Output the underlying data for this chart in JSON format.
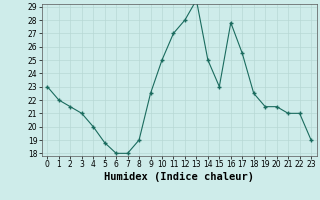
{
  "x": [
    0,
    1,
    2,
    3,
    4,
    5,
    6,
    7,
    8,
    9,
    10,
    11,
    12,
    13,
    14,
    15,
    16,
    17,
    18,
    19,
    20,
    21,
    22,
    23
  ],
  "y": [
    23.0,
    22.0,
    21.5,
    21.0,
    20.0,
    18.8,
    18.0,
    18.0,
    19.0,
    22.5,
    25.0,
    27.0,
    28.0,
    29.5,
    25.0,
    23.0,
    27.8,
    25.5,
    22.5,
    21.5,
    21.5,
    21.0,
    21.0,
    19.0
  ],
  "xlabel": "Humidex (Indice chaleur)",
  "ylim_min": 18,
  "ylim_max": 29,
  "xlim_min": 0,
  "xlim_max": 23,
  "yticks": [
    18,
    19,
    20,
    21,
    22,
    23,
    24,
    25,
    26,
    27,
    28,
    29
  ],
  "xticks": [
    0,
    1,
    2,
    3,
    4,
    5,
    6,
    7,
    8,
    9,
    10,
    11,
    12,
    13,
    14,
    15,
    16,
    17,
    18,
    19,
    20,
    21,
    22,
    23
  ],
  "line_color": "#1a6b5e",
  "marker": "+",
  "bg_color": "#ceecea",
  "grid_color": "#b8d8d5",
  "tick_label_fontsize": 5.5,
  "xlabel_fontsize": 7.5
}
